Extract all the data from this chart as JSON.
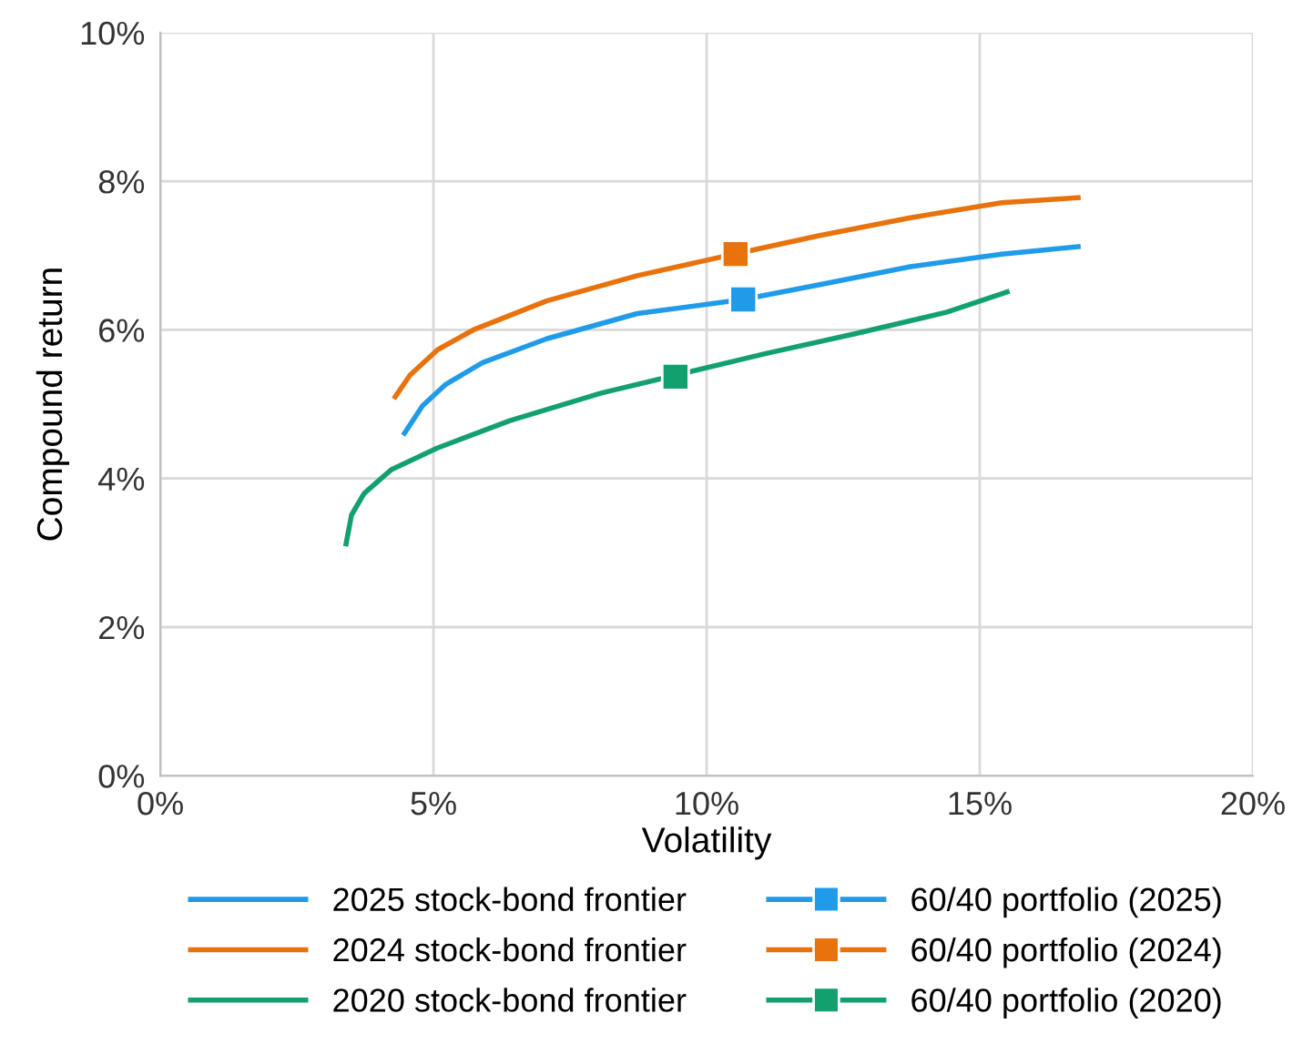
{
  "chart_data": {
    "type": "line",
    "xlabel": "Volatility",
    "ylabel": "Compound return",
    "xlim": [
      0,
      20
    ],
    "ylim": [
      0,
      10
    ],
    "xticks": [
      {
        "value": 0,
        "label": "0%"
      },
      {
        "value": 5,
        "label": "5%"
      },
      {
        "value": 10,
        "label": "10%"
      },
      {
        "value": 15,
        "label": "15%"
      },
      {
        "value": 20,
        "label": "20%"
      }
    ],
    "yticks": [
      {
        "value": 0,
        "label": "0%"
      },
      {
        "value": 2,
        "label": "2%"
      },
      {
        "value": 4,
        "label": "4%"
      },
      {
        "value": 6,
        "label": "6%"
      },
      {
        "value": 8,
        "label": "8%"
      },
      {
        "value": 10,
        "label": "10%"
      }
    ],
    "grid": true,
    "legend": "bottom",
    "series": [
      {
        "name": "2025 stock-bond frontier",
        "color": "#1f9bea",
        "x": [
          4.47,
          4.8,
          5.23,
          5.9,
          7.07,
          8.73,
          10.67,
          12.07,
          13.73,
          15.4,
          16.8
        ],
        "values": [
          4.61,
          4.98,
          5.27,
          5.56,
          5.88,
          6.22,
          6.41,
          6.61,
          6.85,
          7.02,
          7.12
        ]
      },
      {
        "name": "2024 stock-bond frontier",
        "color": "#e8720c",
        "x": [
          4.3,
          4.57,
          5.07,
          5.73,
          7.07,
          8.73,
          10.5,
          12.07,
          13.73,
          15.4,
          16.8
        ],
        "values": [
          5.1,
          5.39,
          5.73,
          6.0,
          6.39,
          6.73,
          7.02,
          7.27,
          7.51,
          7.71,
          7.78
        ]
      },
      {
        "name": "2020 stock-bond frontier",
        "color": "#13a06f",
        "x": [
          3.4,
          3.5,
          3.73,
          4.23,
          5.07,
          6.4,
          8.07,
          9.43,
          11.07,
          12.73,
          14.4,
          15.5
        ],
        "values": [
          3.12,
          3.51,
          3.8,
          4.12,
          4.41,
          4.78,
          5.15,
          5.39,
          5.68,
          5.95,
          6.24,
          6.51
        ]
      },
      {
        "name": "60/40 portfolio (2025)",
        "type": "scatter",
        "marker": "square",
        "color": "#1f9bea",
        "x": [
          10.67
        ],
        "values": [
          6.41
        ]
      },
      {
        "name": "60/40 portfolio (2024)",
        "type": "scatter",
        "marker": "square",
        "color": "#e8720c",
        "x": [
          10.53
        ],
        "values": [
          7.02
        ]
      },
      {
        "name": "60/40 portfolio (2020)",
        "type": "scatter",
        "marker": "square",
        "color": "#13a06f",
        "x": [
          9.43
        ],
        "values": [
          5.37
        ]
      }
    ]
  }
}
